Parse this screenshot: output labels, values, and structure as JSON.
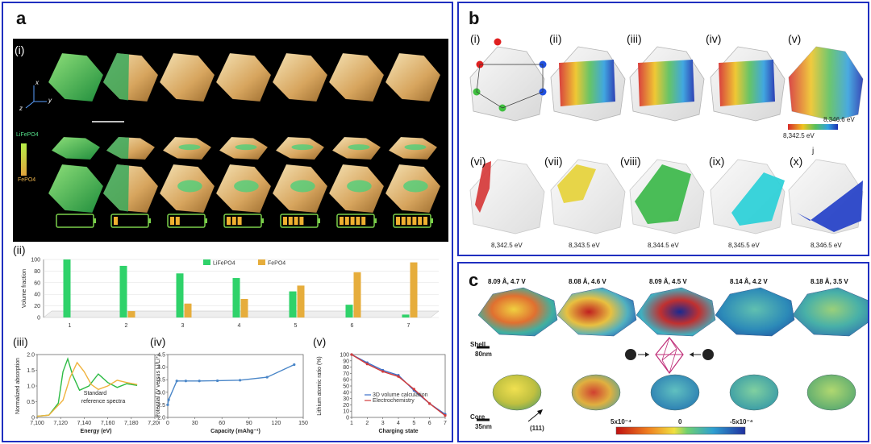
{
  "panel_a": {
    "label": "a",
    "sub_i": "(i)",
    "sub_ii": "(ii)",
    "sub_iii": "(iii)",
    "sub_iv": "(iv)",
    "sub_v": "(v)",
    "axis_x": "x",
    "axis_y": "y",
    "axis_z": "z",
    "legend_top": "LiFePO4",
    "legend_bottom": "FePO4",
    "battery_levels": [
      0,
      1,
      2,
      3,
      4,
      5,
      6
    ]
  },
  "panel_b": {
    "label": "b",
    "subs": [
      "(i)",
      "(ii)",
      "(iii)",
      "(iv)",
      "(v)",
      "(vi)",
      "(vii)",
      "(viii)",
      "(ix)",
      "(x)"
    ],
    "colorbar_low": "8,342.5 eV",
    "colorbar_high": "8,346.6 eV",
    "marker": "j",
    "energies": [
      "8,342.5 eV",
      "8,343.5 eV",
      "8,344.5 eV",
      "8,345.5 eV",
      "8,346.5 eV"
    ]
  },
  "panel_c": {
    "label": "c",
    "titles": [
      "8.09 Å, 4.7 V",
      "8.08 Å, 4.6 V",
      "8.09 Å, 4.5 V",
      "8.14 Å, 4.2 V",
      "8.18 Å, 3.5 V"
    ],
    "shell_label": "Shell",
    "core_label": "Core",
    "scale_shell": "80nm",
    "scale_core": "35nm",
    "direction": "(111)",
    "cb_left": "5x10⁻⁴",
    "cb_mid": "0",
    "cb_right": "-5x10⁻⁴"
  },
  "chart_data": [
    {
      "type": "bar",
      "id": "a-ii",
      "ylabel": "Volume fraction",
      "categories": [
        "1",
        "2",
        "3",
        "4",
        "5",
        "6",
        "7"
      ],
      "ylim": [
        0,
        100
      ],
      "yticks": [
        "0",
        "20",
        "40",
        "60",
        "80",
        "100"
      ],
      "series": [
        {
          "name": "LiFePO4",
          "color": "#2fd26a",
          "values": [
            100,
            89,
            76,
            68,
            45,
            22,
            5
          ]
        },
        {
          "name": "FePO4",
          "color": "#e6ad3c",
          "values": [
            0,
            11,
            24,
            32,
            55,
            78,
            95
          ]
        }
      ]
    },
    {
      "type": "line",
      "id": "a-iii",
      "xlabel": "Energy (eV)",
      "ylabel": "Normalized absorption",
      "xlim": [
        7100,
        7200
      ],
      "ylim": [
        0,
        2.2
      ],
      "xticks": [
        "7,100",
        "7,120",
        "7,140",
        "7,160",
        "7,180",
        "7,200"
      ],
      "yticks": [
        "0",
        "0.5",
        "1.0",
        "1.5",
        "2.0"
      ],
      "annotation": "Standard reference spectra",
      "series": [
        {
          "color": "#2dbb45",
          "x": [
            7100,
            7110,
            7118,
            7122,
            7126,
            7130,
            7136,
            7144,
            7152,
            7160,
            7168,
            7176,
            7185
          ],
          "y": [
            0.04,
            0.08,
            0.5,
            1.6,
            2.05,
            1.5,
            0.95,
            1.1,
            1.52,
            1.22,
            1.05,
            1.18,
            1.12
          ]
        },
        {
          "color": "#f0b33e",
          "x": [
            7100,
            7110,
            7122,
            7128,
            7134,
            7140,
            7146,
            7152,
            7160,
            7168,
            7176,
            7185
          ],
          "y": [
            0.04,
            0.08,
            0.6,
            1.4,
            1.92,
            1.6,
            1.15,
            0.98,
            1.1,
            1.3,
            1.22,
            1.15
          ]
        }
      ]
    },
    {
      "type": "line",
      "id": "a-iv",
      "xlabel": "Capacity (mAhg⁻¹)",
      "ylabel": "Potential (V versus Li/Li⁺)",
      "xlim": [
        0,
        150
      ],
      "ylim": [
        2.0,
        4.5
      ],
      "xticks": [
        "0",
        "30",
        "60",
        "90",
        "120",
        "150"
      ],
      "yticks": [
        "2.0",
        "2.5",
        "3.0",
        "3.5",
        "4.0",
        "4.5"
      ],
      "series": [
        {
          "color": "#4a86c8",
          "x": [
            0,
            1,
            10,
            20,
            35,
            55,
            80,
            110,
            140
          ],
          "y": [
            2.5,
            2.7,
            3.45,
            3.45,
            3.45,
            3.46,
            3.48,
            3.6,
            4.1
          ]
        }
      ]
    },
    {
      "type": "line",
      "id": "a-v",
      "xlabel": "Charging state",
      "ylabel": "Lithium atomic ratio (%)",
      "xlim": [
        1,
        7
      ],
      "ylim": [
        0,
        100
      ],
      "xticks": [
        "1",
        "2",
        "3",
        "4",
        "5",
        "6",
        "7"
      ],
      "yticks": [
        "0",
        "10",
        "20",
        "30",
        "40",
        "50",
        "60",
        "70",
        "80",
        "90",
        "100"
      ],
      "series": [
        {
          "name": "3D volume calculation",
          "color": "#3c6fc9",
          "x": [
            1,
            2,
            3,
            4,
            5,
            6,
            7
          ],
          "y": [
            100,
            87,
            75,
            67,
            43,
            22,
            5
          ]
        },
        {
          "name": "Electrochemistry",
          "color": "#d23b3b",
          "x": [
            1,
            2,
            3,
            4,
            5,
            6,
            7
          ],
          "y": [
            100,
            85,
            73,
            65,
            45,
            22,
            3
          ]
        }
      ]
    }
  ]
}
